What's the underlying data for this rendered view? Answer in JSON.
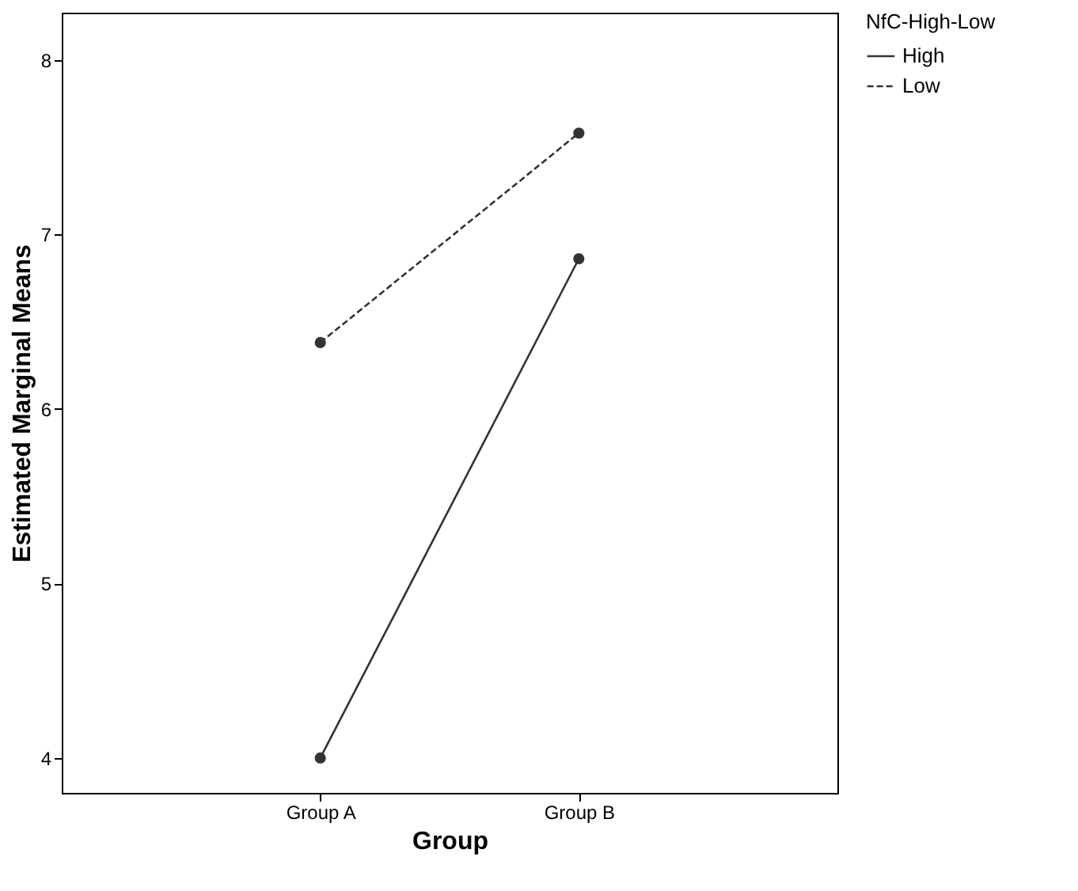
{
  "chart_data": {
    "type": "line",
    "xlabel": "Group",
    "ylabel": "Estimated Marginal Means",
    "legend_title": "NfC-High-Low",
    "categories": [
      "Group A",
      "Group B"
    ],
    "series": [
      {
        "name": "High",
        "color": "#333333",
        "values": [
          4.0,
          6.86
        ],
        "line_style": "solid"
      },
      {
        "name": "Low",
        "color": "#333333",
        "values": [
          6.38,
          7.58
        ],
        "line_style": "dashed"
      }
    ],
    "ylim": [
      3.8,
      8.27
    ],
    "yticks": [
      4,
      5,
      6,
      7,
      8
    ],
    "grid": false,
    "legend": "top right",
    "marker": "circle"
  }
}
